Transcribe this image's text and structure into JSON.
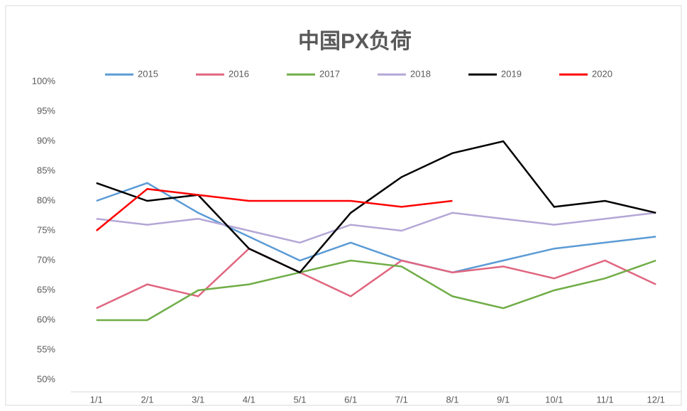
{
  "chart_data": {
    "type": "line",
    "title": "中国PX负荷",
    "categories": [
      "1/1",
      "2/1",
      "3/1",
      "4/1",
      "5/1",
      "6/1",
      "7/1",
      "8/1",
      "9/1",
      "10/1",
      "11/1",
      "12/1"
    ],
    "series": [
      {
        "name": "2015",
        "color": "#5b9bd5",
        "values": [
          80,
          83,
          78,
          74,
          70,
          73,
          70,
          68,
          70,
          72,
          73,
          74
        ]
      },
      {
        "name": "2016",
        "color": "#e06680",
        "values": [
          62,
          66,
          64,
          72,
          68,
          64,
          70,
          68,
          69,
          67,
          70,
          66
        ]
      },
      {
        "name": "2017",
        "color": "#70ad47",
        "values": [
          60,
          60,
          65,
          66,
          68,
          70,
          69,
          64,
          62,
          65,
          67,
          70
        ]
      },
      {
        "name": "2018",
        "color": "#b4a7d6",
        "values": [
          77,
          76,
          77,
          75,
          73,
          76,
          75,
          78,
          77,
          76,
          77,
          78
        ]
      },
      {
        "name": "2019",
        "color": "#000000",
        "values": [
          83,
          80,
          81,
          72,
          68,
          78,
          84,
          88,
          90,
          79,
          80,
          78
        ]
      },
      {
        "name": "2020",
        "color": "#ff0000",
        "values": [
          75,
          82,
          81,
          80,
          80,
          80,
          79,
          80,
          null,
          null,
          null,
          null
        ]
      }
    ],
    "ylim": [
      50,
      100
    ],
    "yticks": [
      {
        "value": 50,
        "label": "50%"
      },
      {
        "value": 55,
        "label": "55%"
      },
      {
        "value": 60,
        "label": "60%"
      },
      {
        "value": 65,
        "label": "65%"
      },
      {
        "value": 70,
        "label": "70%"
      },
      {
        "value": 75,
        "label": "75%"
      },
      {
        "value": 80,
        "label": "80%"
      },
      {
        "value": 85,
        "label": "85%"
      },
      {
        "value": 90,
        "label": "90%"
      },
      {
        "value": 95,
        "label": "95%"
      },
      {
        "value": 100,
        "label": "100%"
      }
    ],
    "grid": false
  }
}
